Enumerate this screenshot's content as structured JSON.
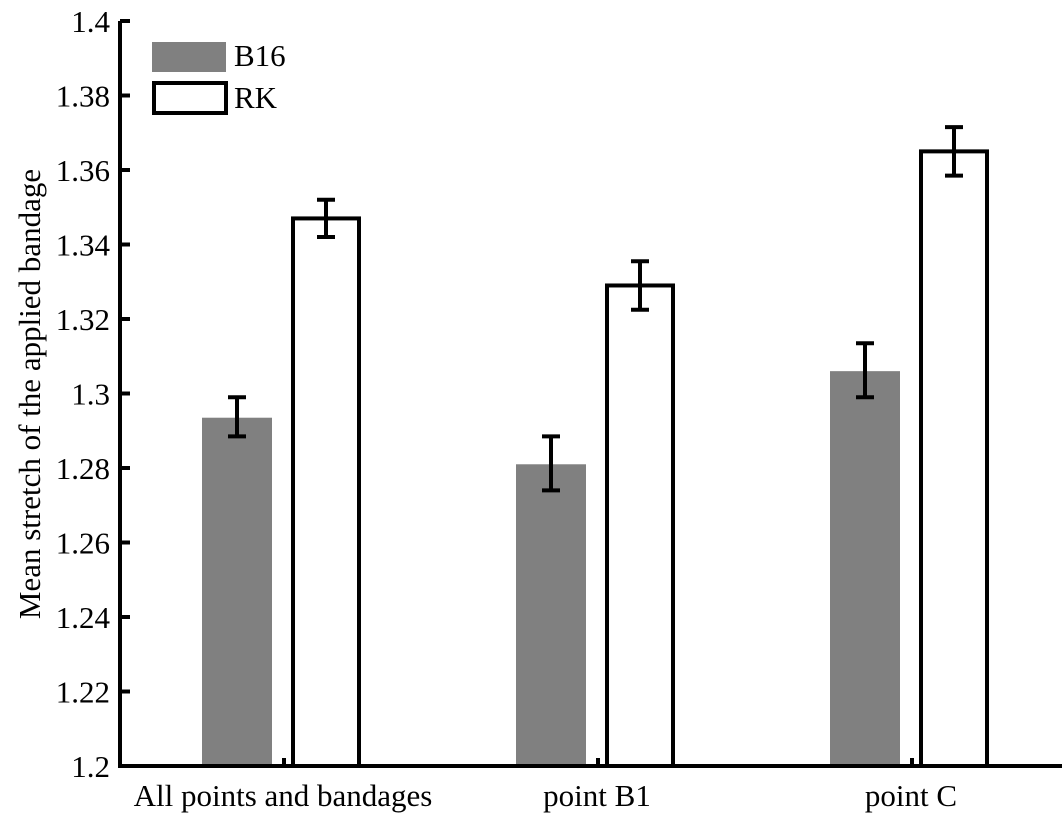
{
  "chart_data": {
    "type": "bar",
    "title": "",
    "xlabel": "",
    "ylabel": "Mean stretch of the applied bandage",
    "ylim": [
      1.2,
      1.4
    ],
    "yticks": [
      "1.2",
      "1.22",
      "1.24",
      "1.26",
      "1.28",
      "1.3",
      "1.32",
      "1.34",
      "1.36",
      "1.38",
      "1.4"
    ],
    "categories": [
      "All points and bandages",
      "point B1",
      "point C"
    ],
    "series": [
      {
        "name": "B16",
        "color": "#808080",
        "values": [
          1.2935,
          1.281,
          1.306
        ],
        "error_low": [
          1.2885,
          1.274,
          1.299
        ],
        "error_high": [
          1.299,
          1.2885,
          1.3135
        ]
      },
      {
        "name": "RK",
        "color": "#ffffff",
        "values": [
          1.347,
          1.329,
          1.365
        ],
        "error_low": [
          1.342,
          1.3225,
          1.3585
        ],
        "error_high": [
          1.352,
          1.3355,
          1.3715
        ]
      }
    ],
    "legend": {
      "position": "top-left"
    },
    "grid": false
  }
}
